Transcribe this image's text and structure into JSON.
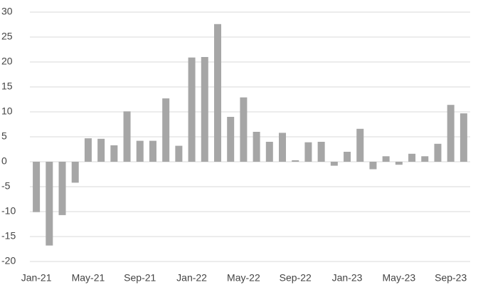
{
  "chart_data": {
    "type": "bar",
    "categories": [
      "Jan-21",
      null,
      null,
      null,
      "May-21",
      null,
      null,
      null,
      "Sep-21",
      null,
      null,
      null,
      "Jan-22",
      null,
      null,
      null,
      "May-22",
      null,
      null,
      null,
      "Sep-22",
      null,
      null,
      null,
      "Jan-23",
      null,
      null,
      null,
      "May-23",
      null,
      null,
      null,
      "Sep-23",
      null
    ],
    "values": [
      -10.1,
      -16.8,
      -10.7,
      -4.2,
      4.7,
      4.6,
      3.3,
      10.1,
      4.2,
      4.2,
      12.7,
      3.2,
      20.9,
      21.0,
      27.6,
      9.0,
      12.9,
      6.0,
      4.0,
      5.8,
      0.3,
      3.9,
      4.0,
      -0.8,
      2.0,
      6.6,
      -1.5,
      1.1,
      -0.6,
      1.6,
      1.1,
      3.6,
      11.4,
      9.7
    ],
    "color": "#a6a6a6",
    "ylim": [
      -20,
      30
    ],
    "yticks": [
      -20,
      -15,
      -10,
      -5,
      0,
      5,
      10,
      15,
      20,
      25,
      30
    ],
    "grid": true
  }
}
